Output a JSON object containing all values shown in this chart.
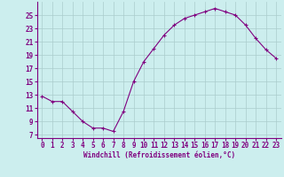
{
  "x": [
    0,
    1,
    2,
    3,
    4,
    5,
    6,
    7,
    8,
    9,
    10,
    11,
    12,
    13,
    14,
    15,
    16,
    17,
    18,
    19,
    20,
    21,
    22,
    23
  ],
  "y": [
    12.8,
    12.0,
    12.0,
    10.5,
    9.0,
    8.0,
    8.0,
    7.5,
    10.5,
    15.0,
    18.0,
    20.0,
    22.0,
    23.5,
    24.5,
    25.0,
    25.5,
    26.0,
    25.5,
    25.0,
    23.5,
    21.5,
    19.8,
    18.5
  ],
  "yticks": [
    7,
    9,
    11,
    13,
    15,
    17,
    19,
    21,
    23,
    25
  ],
  "xticks": [
    0,
    1,
    2,
    3,
    4,
    5,
    6,
    7,
    8,
    9,
    10,
    11,
    12,
    13,
    14,
    15,
    16,
    17,
    18,
    19,
    20,
    21,
    22,
    23
  ],
  "xlabel": "Windchill (Refroidissement éolien,°C)",
  "line_color": "#800080",
  "marker_color": "#800080",
  "bg_color": "#cceeee",
  "grid_color": "#aacccc",
  "axis_color": "#800080",
  "xlim": [
    -0.5,
    23.5
  ],
  "ylim": [
    6.5,
    27.0
  ],
  "tick_fontsize": 5.5,
  "xlabel_fontsize": 5.5
}
